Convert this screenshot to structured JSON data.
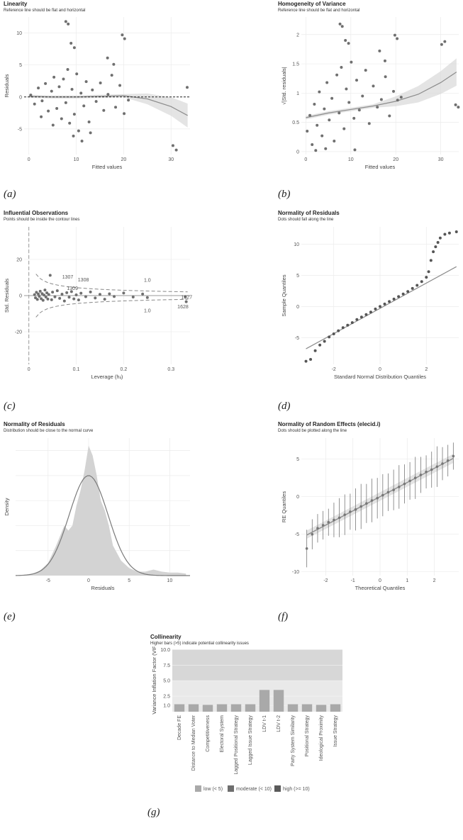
{
  "captions": [
    "(a)",
    "(b)",
    "(c)",
    "(d)",
    "(e)",
    "(f)",
    "(g)"
  ],
  "chart_data": [
    {
      "type": "scatter",
      "panel": "a",
      "title": "Linearity",
      "subtitle": "Reference line should be flat and horizontal",
      "xlabel": "Fitted values",
      "ylabel": "Residuals",
      "xlim": [
        -1,
        34
      ],
      "ylim": [
        -9,
        12.5
      ],
      "xticks": [
        0,
        10,
        20,
        30
      ],
      "yticks": [
        -5,
        0,
        5,
        10
      ],
      "reference_line_y": 0,
      "smooth": {
        "x": [
          0,
          5,
          10,
          15,
          20,
          25,
          30,
          33.5
        ],
        "y": [
          0.1,
          0.0,
          0.0,
          0.1,
          0.2,
          -0.3,
          -1.5,
          -2.9
        ]
      },
      "points": [
        [
          0.4,
          0.3
        ],
        [
          1.2,
          -1.1
        ],
        [
          2.0,
          1.4
        ],
        [
          2.8,
          -0.6
        ],
        [
          3.5,
          2.1
        ],
        [
          4.1,
          -2.2
        ],
        [
          4.8,
          0.9
        ],
        [
          5.3,
          3.1
        ],
        [
          5.9,
          -1.8
        ],
        [
          6.4,
          1.6
        ],
        [
          6.9,
          -3.4
        ],
        [
          7.3,
          2.8
        ],
        [
          7.8,
          -0.9
        ],
        [
          8.2,
          4.3
        ],
        [
          8.6,
          -4.1
        ],
        [
          9.1,
          1.2
        ],
        [
          9.6,
          -2.7
        ],
        [
          10.1,
          3.6
        ],
        [
          10.5,
          -5.3
        ],
        [
          11.0,
          0.6
        ],
        [
          11.6,
          -1.4
        ],
        [
          12.1,
          2.4
        ],
        [
          12.7,
          -3.9
        ],
        [
          13.4,
          1.1
        ],
        [
          14.2,
          -0.7
        ],
        [
          15.1,
          2.2
        ],
        [
          15.8,
          -2.1
        ],
        [
          16.7,
          0.4
        ],
        [
          17.5,
          3.4
        ],
        [
          18.3,
          -1.6
        ],
        [
          19.2,
          1.8
        ],
        [
          20.1,
          -2.6
        ],
        [
          21.0,
          -0.5
        ],
        [
          7.8,
          11.8
        ],
        [
          8.3,
          11.4
        ],
        [
          8.9,
          8.4
        ],
        [
          9.6,
          7.7
        ],
        [
          16.6,
          6.1
        ],
        [
          17.9,
          5.1
        ],
        [
          19.7,
          9.7
        ],
        [
          20.2,
          9.1
        ],
        [
          30.4,
          -7.6
        ],
        [
          31.1,
          -8.3
        ],
        [
          33.4,
          1.5
        ],
        [
          2.6,
          -3.1
        ],
        [
          5.1,
          -4.4
        ],
        [
          9.4,
          -6.1
        ],
        [
          11.2,
          -6.9
        ],
        [
          13.0,
          -5.6
        ]
      ]
    },
    {
      "type": "scatter",
      "panel": "b",
      "title": "Homogeneity of Variance",
      "subtitle": "Reference line should be flat and horizontal",
      "xlabel": "Fitted values",
      "ylabel": "√|Std. residuals|",
      "xlim": [
        -1,
        34
      ],
      "ylim": [
        -0.05,
        2.3
      ],
      "xticks": [
        0,
        10,
        20,
        30
      ],
      "yticks": [
        0.0,
        0.5,
        1.0,
        1.5,
        2.0
      ],
      "smooth": {
        "x": [
          0,
          5,
          10,
          15,
          20,
          25,
          30,
          33.5
        ],
        "y": [
          0.58,
          0.66,
          0.72,
          0.78,
          0.86,
          0.98,
          1.18,
          1.36
        ]
      },
      "points": [
        [
          0.3,
          0.35
        ],
        [
          0.9,
          0.62
        ],
        [
          1.4,
          0.12
        ],
        [
          1.9,
          0.81
        ],
        [
          2.5,
          0.45
        ],
        [
          3.0,
          1.02
        ],
        [
          3.6,
          0.27
        ],
        [
          4.1,
          0.73
        ],
        [
          4.7,
          1.18
        ],
        [
          5.2,
          0.54
        ],
        [
          5.8,
          0.91
        ],
        [
          6.3,
          0.18
        ],
        [
          6.9,
          1.31
        ],
        [
          7.4,
          0.66
        ],
        [
          7.9,
          1.44
        ],
        [
          8.5,
          0.39
        ],
        [
          9.0,
          1.07
        ],
        [
          9.6,
          0.84
        ],
        [
          10.1,
          1.53
        ],
        [
          10.7,
          0.57
        ],
        [
          11.3,
          1.22
        ],
        [
          11.9,
          0.71
        ],
        [
          12.6,
          0.95
        ],
        [
          13.3,
          1.39
        ],
        [
          14.1,
          0.48
        ],
        [
          15.0,
          1.12
        ],
        [
          15.9,
          0.76
        ],
        [
          16.8,
          0.89
        ],
        [
          17.7,
          1.28
        ],
        [
          18.6,
          0.61
        ],
        [
          19.5,
          1.03
        ],
        [
          20.4,
          0.88
        ],
        [
          21.2,
          0.93
        ],
        [
          7.6,
          2.18
        ],
        [
          8.1,
          2.14
        ],
        [
          8.8,
          1.9
        ],
        [
          9.5,
          1.85
        ],
        [
          16.4,
          1.72
        ],
        [
          17.6,
          1.55
        ],
        [
          19.8,
          1.99
        ],
        [
          20.3,
          1.93
        ],
        [
          30.2,
          1.83
        ],
        [
          30.9,
          1.88
        ],
        [
          33.3,
          0.8
        ],
        [
          33.9,
          0.76
        ],
        [
          2.2,
          0.02
        ],
        [
          4.4,
          0.05
        ],
        [
          10.9,
          0.03
        ]
      ]
    },
    {
      "type": "scatter",
      "panel": "c",
      "title": "Influential Observations",
      "subtitle": "Points should be inside the contour lines",
      "xlabel": "Leverage (hᵢᵢ)",
      "ylabel": "Std. Residuals",
      "xlim": [
        -0.01,
        0.34
      ],
      "ylim": [
        -38,
        38
      ],
      "xticks": [
        0.0,
        0.1,
        0.2,
        0.3
      ],
      "yticks": [
        -20,
        0,
        20
      ],
      "contour_labels": [
        "1.0",
        "1.0"
      ],
      "point_labels": [
        {
          "x": 0.082,
          "y": 9.5,
          "label": "1307"
        },
        {
          "x": 0.115,
          "y": 7.8,
          "label": "1308"
        },
        {
          "x": 0.092,
          "y": 3.2,
          "label": "1309"
        },
        {
          "x": 0.333,
          "y": -1.8,
          "label": "1627"
        },
        {
          "x": 0.325,
          "y": -7.0,
          "label": "1628"
        }
      ],
      "points": [
        [
          0.012,
          0.5
        ],
        [
          0.014,
          -1.2
        ],
        [
          0.016,
          1.8
        ],
        [
          0.018,
          -2.1
        ],
        [
          0.02,
          0.9
        ],
        [
          0.022,
          -0.4
        ],
        [
          0.024,
          2.4
        ],
        [
          0.026,
          -1.7
        ],
        [
          0.028,
          1.1
        ],
        [
          0.03,
          -2.6
        ],
        [
          0.032,
          0.3
        ],
        [
          0.034,
          3.1
        ],
        [
          0.036,
          -0.8
        ],
        [
          0.038,
          1.5
        ],
        [
          0.04,
          -1.9
        ],
        [
          0.042,
          0.6
        ],
        [
          0.045,
          11.2
        ],
        [
          0.048,
          -2.3
        ],
        [
          0.05,
          1.9
        ],
        [
          0.055,
          -0.7
        ],
        [
          0.06,
          2.7
        ],
        [
          0.065,
          -1.5
        ],
        [
          0.07,
          0.8
        ],
        [
          0.075,
          -3.0
        ],
        [
          0.08,
          1.6
        ],
        [
          0.085,
          -0.9
        ],
        [
          0.09,
          2.2
        ],
        [
          0.095,
          -1.8
        ],
        [
          0.1,
          0.4
        ],
        [
          0.105,
          -2.4
        ],
        [
          0.11,
          1.3
        ],
        [
          0.12,
          -0.6
        ],
        [
          0.13,
          2.0
        ],
        [
          0.14,
          -1.3
        ],
        [
          0.15,
          0.7
        ],
        [
          0.16,
          -2.0
        ],
        [
          0.17,
          1.0
        ],
        [
          0.18,
          -0.5
        ],
        [
          0.2,
          1.4
        ],
        [
          0.22,
          -0.8
        ],
        [
          0.24,
          0.9
        ],
        [
          0.25,
          -1.1
        ],
        [
          0.33,
          -0.6
        ],
        [
          0.332,
          -3.4
        ]
      ]
    },
    {
      "type": "scatter",
      "panel": "d",
      "title": "Normality of Residuals",
      "subtitle": "Dots should fall along the line",
      "xlabel": "Standard Normal Distribution Quantiles",
      "ylabel": "Sample Quantiles",
      "xlim": [
        -3.4,
        3.4
      ],
      "ylim": [
        -9.3,
        12.8
      ],
      "xticks": [
        -2,
        0,
        2
      ],
      "yticks": [
        -5,
        0,
        5,
        10
      ],
      "reference_line": {
        "x": [
          -3.2,
          3.3
        ],
        "y": [
          -6.8,
          6.4
        ]
      },
      "points": [
        [
          -3.2,
          -8.8
        ],
        [
          -3.0,
          -8.5
        ],
        [
          -2.8,
          -7.1
        ],
        [
          -2.6,
          -6.2
        ],
        [
          -2.4,
          -5.6
        ],
        [
          -2.2,
          -4.9
        ],
        [
          -2.0,
          -4.4
        ],
        [
          -1.8,
          -3.9
        ],
        [
          -1.6,
          -3.4
        ],
        [
          -1.4,
          -3.0
        ],
        [
          -1.2,
          -2.6
        ],
        [
          -1.0,
          -2.1
        ],
        [
          -0.8,
          -1.7
        ],
        [
          -0.6,
          -1.3
        ],
        [
          -0.4,
          -0.9
        ],
        [
          -0.2,
          -0.4
        ],
        [
          0.0,
          0.0
        ],
        [
          0.2,
          0.4
        ],
        [
          0.4,
          0.8
        ],
        [
          0.6,
          1.2
        ],
        [
          0.8,
          1.6
        ],
        [
          1.0,
          2.0
        ],
        [
          1.2,
          2.4
        ],
        [
          1.4,
          2.9
        ],
        [
          1.6,
          3.4
        ],
        [
          1.8,
          4.0
        ],
        [
          2.0,
          4.7
        ],
        [
          2.1,
          5.6
        ],
        [
          2.2,
          7.4
        ],
        [
          2.3,
          8.8
        ],
        [
          2.4,
          9.6
        ],
        [
          2.5,
          10.3
        ],
        [
          2.6,
          11.0
        ],
        [
          2.8,
          11.6
        ],
        [
          3.0,
          11.8
        ],
        [
          3.3,
          12.0
        ]
      ]
    },
    {
      "type": "area",
      "panel": "e",
      "title": "Normality of Residuals",
      "subtitle": "Distribution should be close to the normal curve",
      "xlabel": "Residuals",
      "ylabel": "Density",
      "xlim": [
        -9,
        12.5
      ],
      "xticks": [
        -5,
        0,
        5,
        10
      ],
      "density": {
        "x": [
          -9,
          -7,
          -6,
          -5,
          -4,
          -3,
          -2.5,
          -2,
          -1.5,
          -1,
          -0.5,
          0,
          0.5,
          1,
          1.5,
          2,
          2.5,
          3,
          4,
          5,
          6,
          7,
          8,
          9,
          10,
          11,
          12
        ],
        "y": [
          0.0,
          0.003,
          0.01,
          0.025,
          0.06,
          0.1,
          0.09,
          0.1,
          0.14,
          0.17,
          0.21,
          0.26,
          0.24,
          0.2,
          0.15,
          0.13,
          0.1,
          0.06,
          0.03,
          0.015,
          0.008,
          0.008,
          0.012,
          0.008,
          0.006,
          0.006,
          0.004
        ]
      },
      "normal_curve": {
        "mean": 0,
        "sd": 2.4,
        "peak": 0.2
      }
    },
    {
      "type": "scatter",
      "panel": "f",
      "title": "Normality of Random Effects (elecid.i)",
      "subtitle": "Dots should be plotted along the line",
      "xlabel": "Theoretical Quantiles",
      "ylabel": "RE Quantiles",
      "xlim": [
        -2.9,
        2.9
      ],
      "ylim": [
        -10.5,
        7.8
      ],
      "xticks": [
        -2,
        -1,
        0,
        1,
        2
      ],
      "yticks": [
        -10,
        -5,
        0,
        5
      ],
      "reference_line": {
        "x": [
          -2.7,
          2.7
        ],
        "y": [
          -5.1,
          5.1
        ]
      },
      "points": [
        [
          -2.7,
          -6.9,
          2.5
        ],
        [
          -2.5,
          -5.0,
          2.0
        ],
        [
          -2.3,
          -4.2,
          1.9
        ],
        [
          -2.1,
          -3.8,
          1.9
        ],
        [
          -1.9,
          -3.4,
          1.8
        ],
        [
          -1.7,
          -3.1,
          2.3
        ],
        [
          -1.5,
          -2.8,
          2.6
        ],
        [
          -1.3,
          -2.4,
          2.7
        ],
        [
          -1.1,
          -2.0,
          2.4
        ],
        [
          -0.9,
          -1.7,
          2.8
        ],
        [
          -0.7,
          -1.3,
          3.0
        ],
        [
          -0.5,
          -0.9,
          2.6
        ],
        [
          -0.3,
          -0.5,
          2.9
        ],
        [
          -0.1,
          -0.2,
          2.7
        ],
        [
          0.1,
          0.2,
          2.8
        ],
        [
          0.3,
          0.6,
          2.5
        ],
        [
          0.5,
          0.9,
          2.7
        ],
        [
          0.7,
          1.3,
          2.9
        ],
        [
          0.9,
          1.7,
          2.6
        ],
        [
          1.1,
          2.1,
          2.5
        ],
        [
          1.3,
          2.5,
          2.8
        ],
        [
          1.5,
          2.9,
          2.4
        ],
        [
          1.7,
          3.3,
          2.2
        ],
        [
          1.9,
          3.6,
          2.4
        ],
        [
          2.1,
          4.0,
          2.7
        ],
        [
          2.3,
          4.4,
          2.2
        ],
        [
          2.5,
          4.8,
          2.1
        ],
        [
          2.7,
          5.4,
          1.8
        ]
      ]
    },
    {
      "type": "bar",
      "panel": "g",
      "title": "Collinearity",
      "subtitle": "Higher bars (>5) indicate potential collinearity issues",
      "xlabel": "",
      "ylabel": "Variance Inflation Factor (VIF)",
      "ylim": [
        0,
        10
      ],
      "yticks": [
        "1.0",
        "2.5",
        "5.0",
        "7.5",
        "10.0"
      ],
      "categories": [
        "Decade FE",
        "Distance to Median Voter",
        "Competitiveness",
        "Electoral System",
        "Lagged Positional Strategy",
        "Lagged Issue Strategy",
        "LDV t-1",
        "LDV t-2",
        "Party System Similarity",
        "Positional Strategy",
        "Ideological Proximity",
        "Issue Strategy"
      ],
      "values": [
        1.2,
        1.2,
        1.1,
        1.2,
        1.2,
        1.2,
        3.5,
        3.5,
        1.2,
        1.2,
        1.1,
        1.2
      ],
      "legend": [
        {
          "label": "low (< 5)",
          "color": "#a9a9a9"
        },
        {
          "label": "moderate (< 10)",
          "color": "#6e6e6e"
        },
        {
          "label": "high (>= 10)",
          "color": "#5a5a5a"
        }
      ]
    }
  ]
}
